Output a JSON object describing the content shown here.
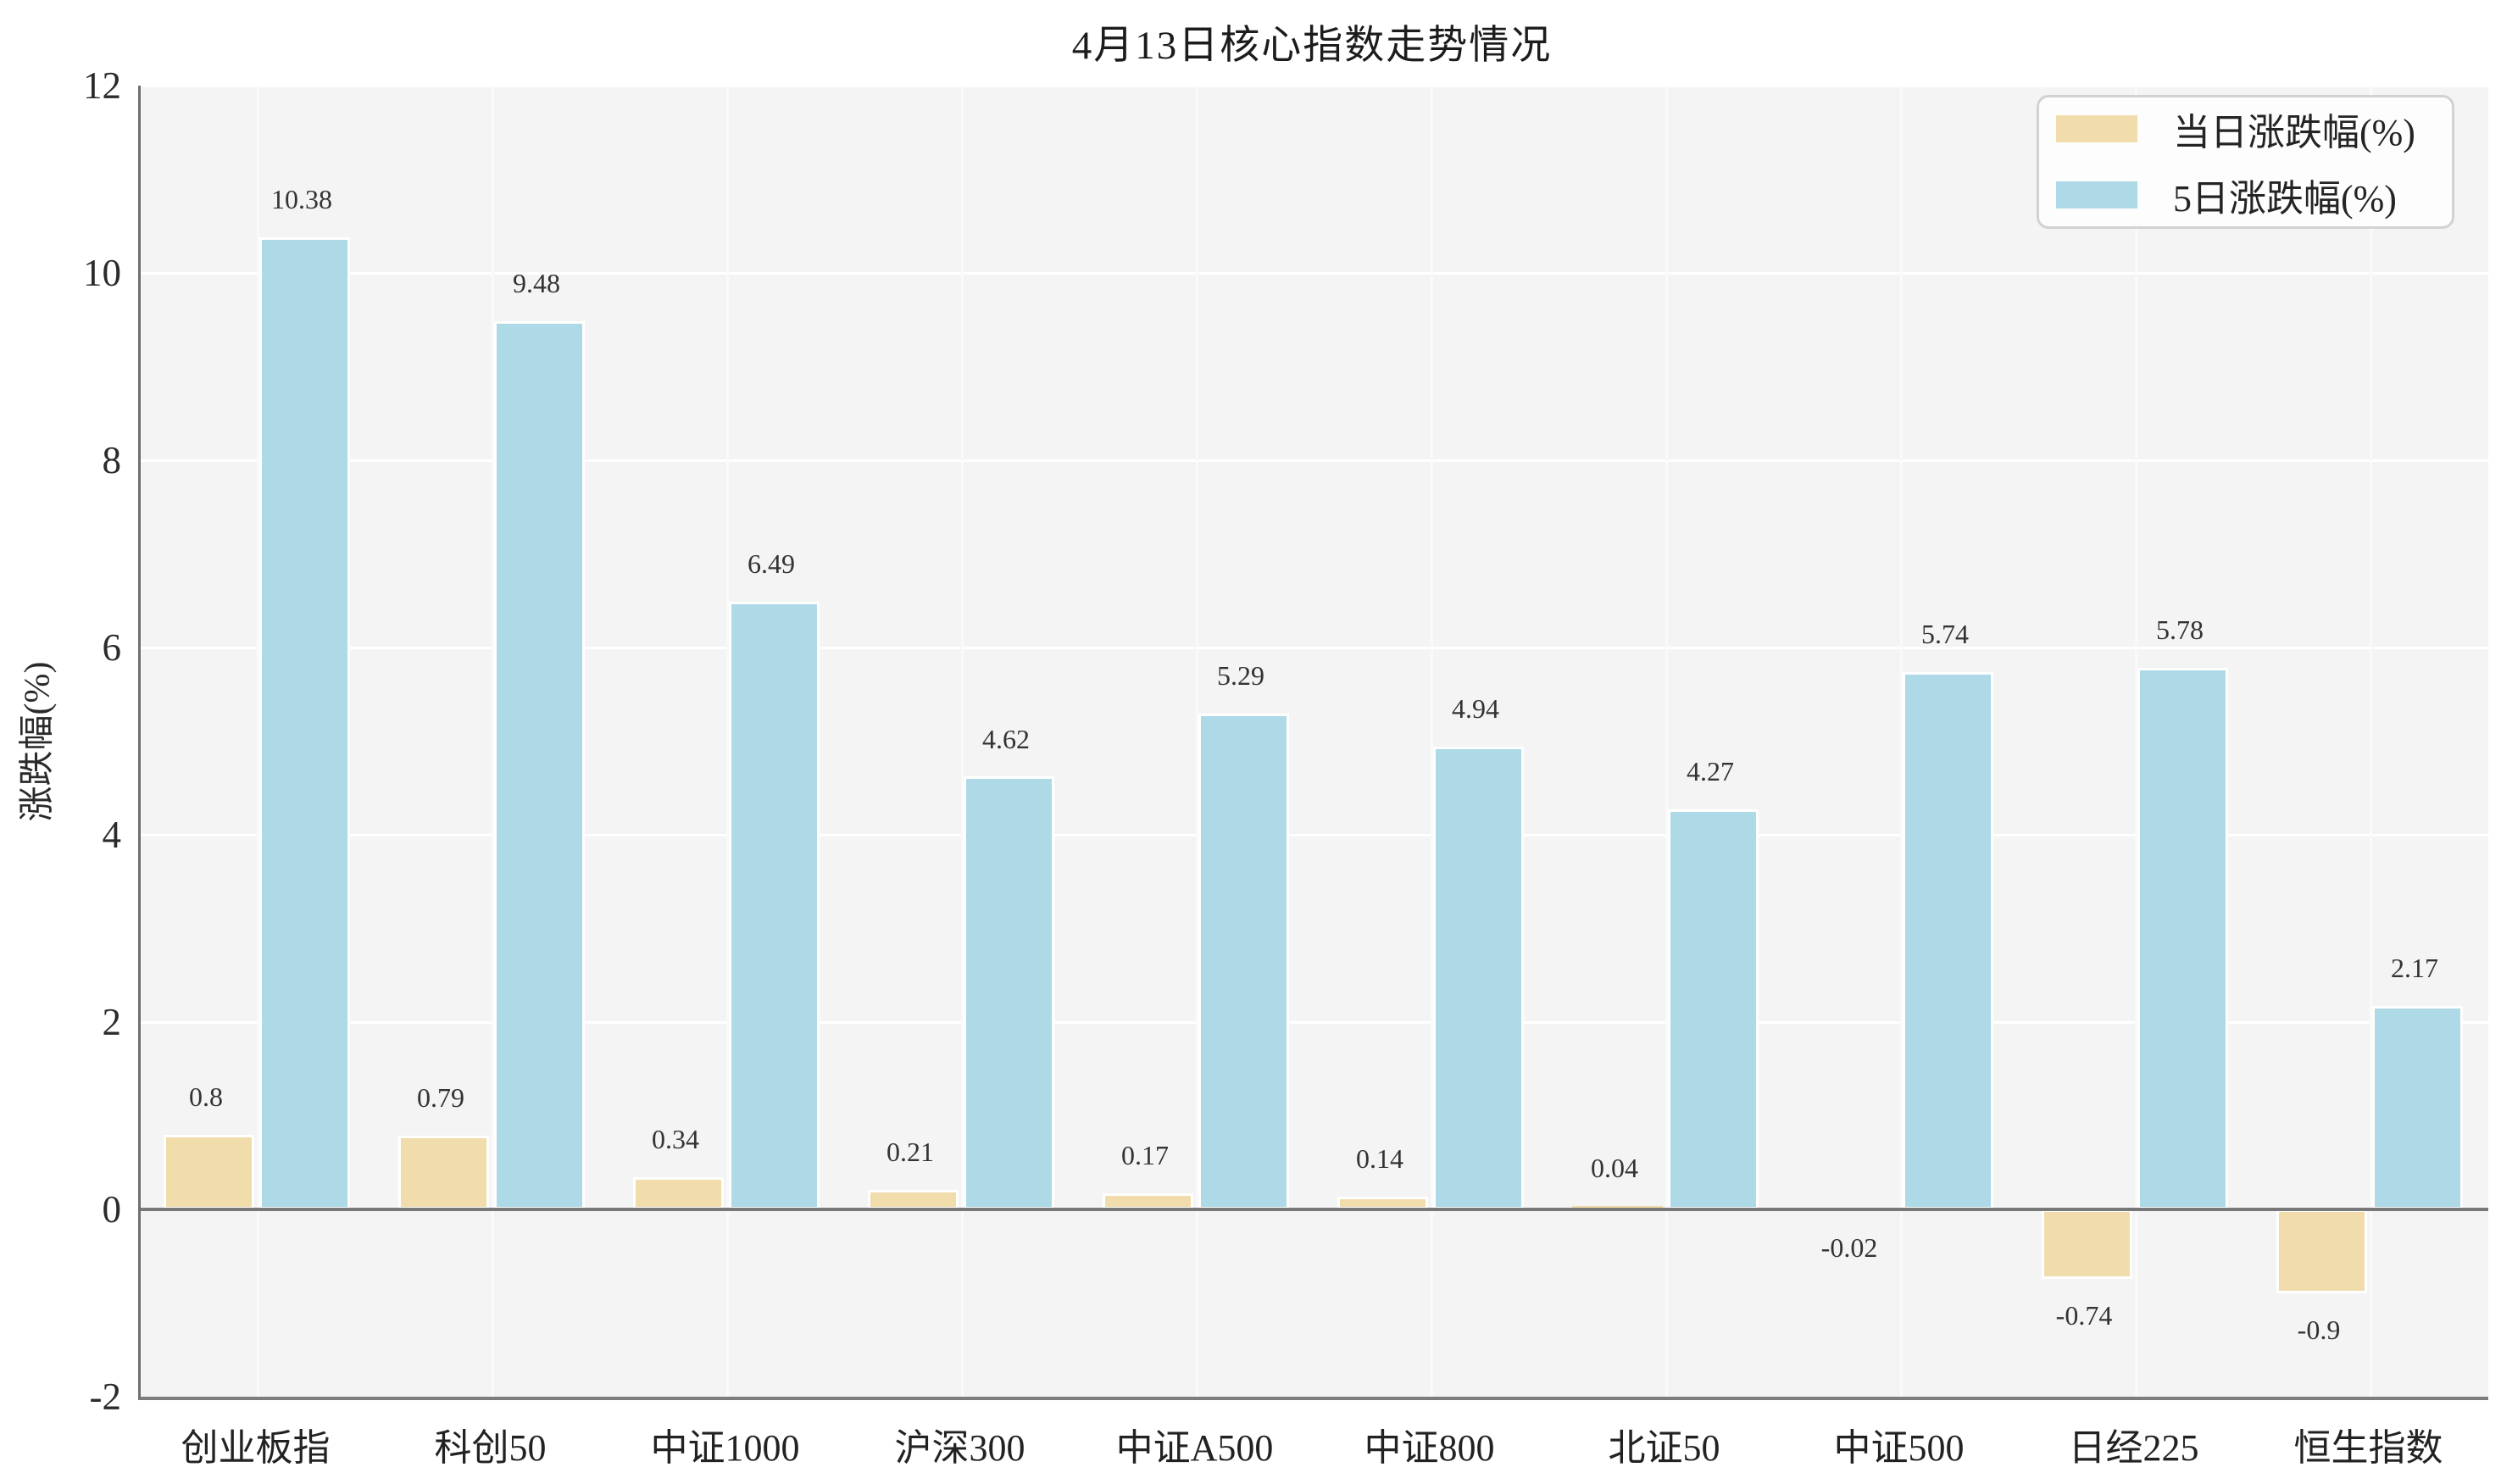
{
  "title": "4月13日核心指数走势情况",
  "chart_data": {
    "type": "bar",
    "title": "4月13日核心指数走势情况",
    "xlabel": "",
    "ylabel": "涨跌幅(%)",
    "categories": [
      "创业板指",
      "科创50",
      "中证1000",
      "沪深300",
      "中证A500",
      "中证800",
      "北证50",
      "中证500",
      "日经225",
      "恒生指数"
    ],
    "series": [
      {
        "name": "当日涨跌幅(%)",
        "color": "#f1dcab",
        "values": [
          0.8,
          0.79,
          0.34,
          0.21,
          0.17,
          0.14,
          0.04,
          -0.02,
          -0.74,
          -0.9
        ]
      },
      {
        "name": "5日涨跌幅(%)",
        "color": "#aed9e6",
        "values": [
          10.38,
          9.48,
          6.49,
          4.62,
          5.29,
          4.94,
          4.27,
          5.74,
          5.78,
          2.17
        ]
      }
    ],
    "value_labels": [
      [
        "0.8",
        "0.79",
        "0.34",
        "0.21",
        "0.17",
        "0.14",
        "0.04",
        "-0.02",
        "-0.74",
        "-0.9"
      ],
      [
        "10.38",
        "9.48",
        "6.49",
        "4.62",
        "5.29",
        "4.94",
        "4.27",
        "5.74",
        "5.78",
        "2.17"
      ]
    ],
    "ylim": [
      -2,
      12
    ],
    "yticks": [
      -2,
      0,
      2,
      4,
      6,
      8,
      10,
      12
    ],
    "grid": true,
    "legend_position": "upper right",
    "plot_background": "#f4f4f4",
    "gridline_color": "#ffffff"
  }
}
